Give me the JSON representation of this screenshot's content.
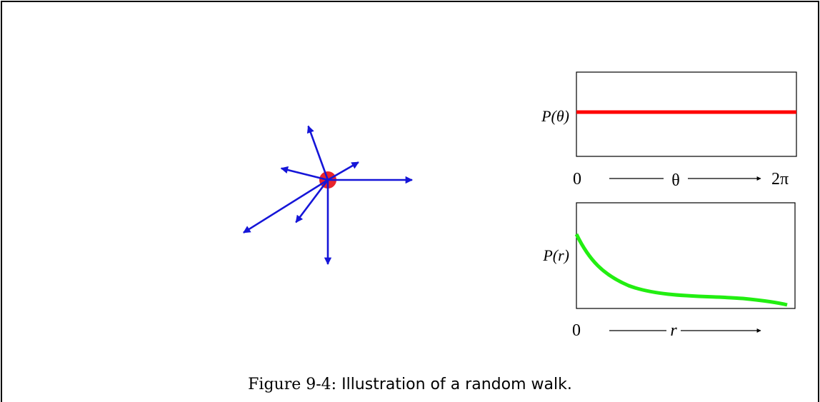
{
  "caption": {
    "label": "Figure 9-4:",
    "text": "Illustration of a random walk."
  },
  "walk_diagram": {
    "center_color": "#e8242b",
    "arrow_color": "#1515d8",
    "steps": [
      {
        "angle_deg": 0,
        "length": 1.0
      },
      {
        "angle_deg": 30,
        "length": 0.42
      },
      {
        "angle_deg": 110,
        "length": 0.68
      },
      {
        "angle_deg": 166,
        "length": 0.57
      },
      {
        "angle_deg": 212,
        "length": 1.18
      },
      {
        "angle_deg": 233,
        "length": 0.63
      },
      {
        "angle_deg": 270,
        "length": 1.0
      }
    ]
  },
  "theta_plot": {
    "ylabel": "P(θ)",
    "x_start": "0",
    "x_var": "θ",
    "x_end": "2π",
    "line_color": "#ff0000",
    "distribution": "uniform"
  },
  "r_plot": {
    "ylabel": "P(r)",
    "x_start": "0",
    "x_var": "r",
    "line_color": "#22ee11",
    "distribution": "decreasing"
  }
}
